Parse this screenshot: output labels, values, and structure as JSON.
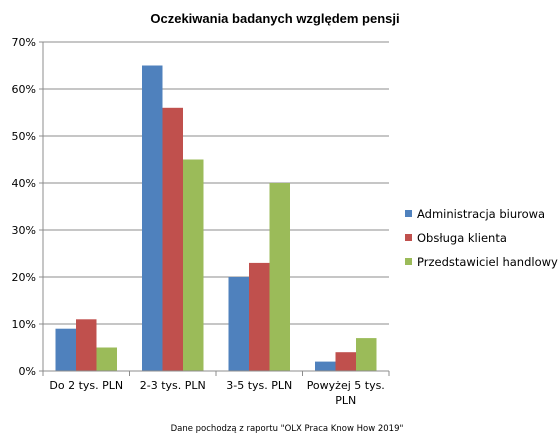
{
  "chart_data": {
    "type": "bar",
    "title": "Oczekiwania badanych względem pensji",
    "categories": [
      [
        "Do 2 tys. PLN"
      ],
      [
        "2-3 tys. PLN"
      ],
      [
        "3-5 tys. PLN"
      ],
      [
        "Powyżej 5 tys.",
        "PLN"
      ]
    ],
    "series": [
      {
        "name": "Administracja biurowa",
        "color": "#4f81bd",
        "values": [
          9,
          65,
          20,
          2
        ]
      },
      {
        "name": "Obsługa klienta",
        "color": "#c0504d",
        "values": [
          11,
          56,
          23,
          4
        ]
      },
      {
        "name": "Przedstawiciel handlowy",
        "color": "#9bbb59",
        "values": [
          5,
          45,
          40,
          7
        ]
      }
    ],
    "ylim": [
      0,
      70
    ],
    "yticks": [
      0,
      10,
      20,
      30,
      40,
      50,
      60,
      70
    ],
    "ytick_labels": [
      "0%",
      "10%",
      "20%",
      "30%",
      "40%",
      "50%",
      "60%",
      "70%"
    ],
    "grid": true,
    "legend_position": "right",
    "xlabel": "",
    "ylabel": "",
    "note": "Dane pochodzą z raportu \"OLX Praca Know How 2019\""
  }
}
